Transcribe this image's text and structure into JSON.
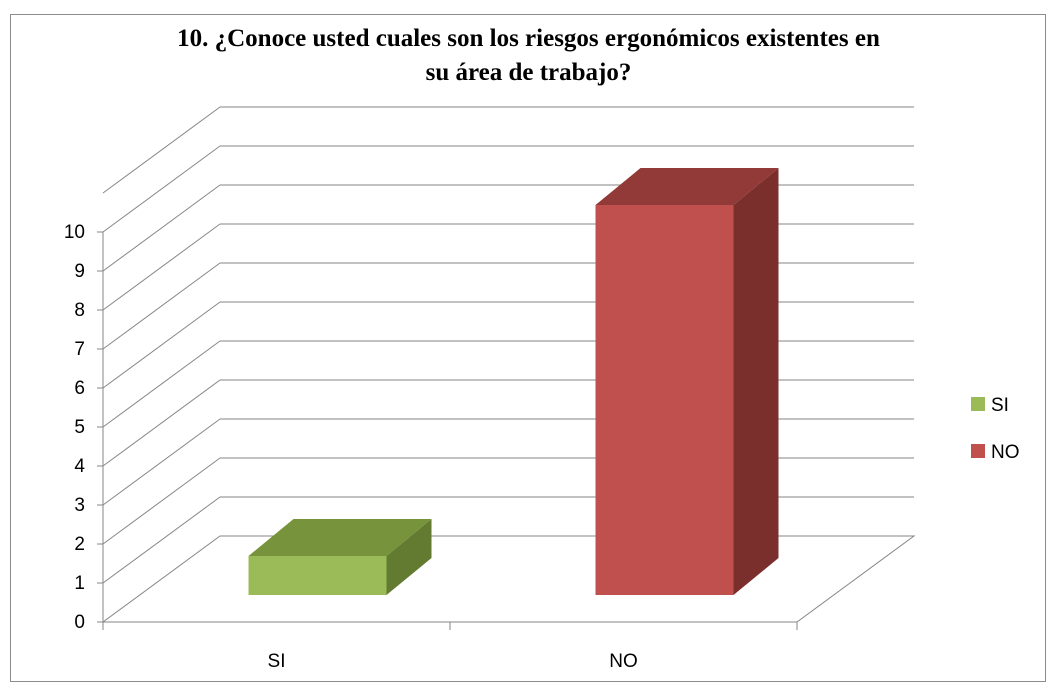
{
  "chart_data": {
    "type": "bar",
    "subtype": "3d-column",
    "title_lines": [
      "10. ¿Conoce usted cuales son los riesgos ergonómicos existentes en",
      "su área de trabajo?"
    ],
    "categories": [
      "SI",
      "NO"
    ],
    "series": [
      {
        "name": "SI",
        "values": [
          1,
          null
        ],
        "color": "#9bbb59",
        "top_color": "#77933c",
        "side_color": "#627b31"
      },
      {
        "name": "NO",
        "values": [
          null,
          10
        ],
        "color": "#c0504d",
        "top_color": "#923a37",
        "side_color": "#7b2f2d"
      }
    ],
    "ylim": [
      0,
      10
    ],
    "yticks": [
      "0",
      "1",
      "2",
      "3",
      "4",
      "5",
      "6",
      "7",
      "8",
      "9",
      "10"
    ],
    "gridlines": true,
    "legend_position": "right"
  }
}
